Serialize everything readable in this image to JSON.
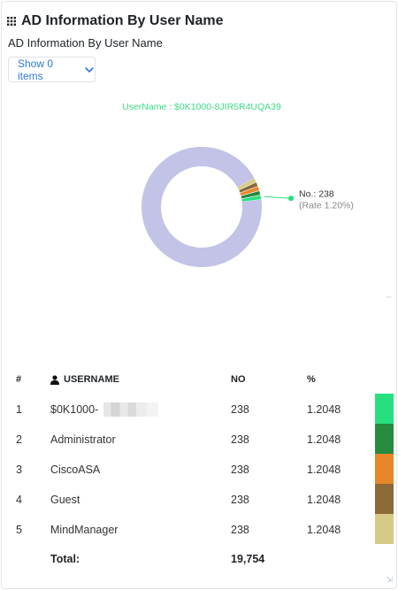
{
  "header": {
    "title": "AD Information By User Name",
    "subtitle": "AD Information By User Name",
    "show_items_label": "Show 0 items"
  },
  "chart_data": {
    "type": "pie",
    "title": "UserName : $0K1000-8JIR5R4UQA39",
    "total": 19754,
    "slices": [
      {
        "label": "$0K1000-8JIR5R4UQA39",
        "value": 238,
        "percent": 1.2048,
        "color": "#26e07f"
      },
      {
        "label": "Administrator",
        "value": 238,
        "percent": 1.2048,
        "color": "#268a3f"
      },
      {
        "label": "CiscoASA",
        "value": 238,
        "percent": 1.2048,
        "color": "#e8862a"
      },
      {
        "label": "Guest",
        "value": 238,
        "percent": 1.2048,
        "color": "#8b6a37"
      },
      {
        "label": "MindManager",
        "value": 238,
        "percent": 1.2048,
        "color": "#d6cb86"
      },
      {
        "label": "",
        "value": 18564,
        "percent": 93.976,
        "color": "#c2c3e6"
      }
    ],
    "callout": {
      "line1": "No.: 238",
      "line2": "(Rate 1.20%)"
    }
  },
  "table": {
    "headers": {
      "idx": "#",
      "user": "USERNAME",
      "no": "NO",
      "pct": "%"
    },
    "rows": [
      {
        "idx": "1",
        "user": "$0K1000-",
        "no": "238",
        "pct": "1.2048",
        "color": "#26e07f",
        "masked": true
      },
      {
        "idx": "2",
        "user": "Administrator",
        "no": "238",
        "pct": "1.2048",
        "color": "#268a3f",
        "masked": false
      },
      {
        "idx": "3",
        "user": "CiscoASA",
        "no": "238",
        "pct": "1.2048",
        "color": "#e8862a",
        "masked": false
      },
      {
        "idx": "4",
        "user": "Guest",
        "no": "238",
        "pct": "1.2048",
        "color": "#8b6a37",
        "masked": false
      },
      {
        "idx": "5",
        "user": "MindManager",
        "no": "238",
        "pct": "1.2048",
        "color": "#d6cb86",
        "masked": false
      }
    ],
    "footer": {
      "label": "Total:",
      "value": "19,754"
    }
  },
  "icons": {
    "title": "grid-icon",
    "dropdown": "chevron-down-icon",
    "user": "user-icon",
    "resize": "resize-icon"
  }
}
